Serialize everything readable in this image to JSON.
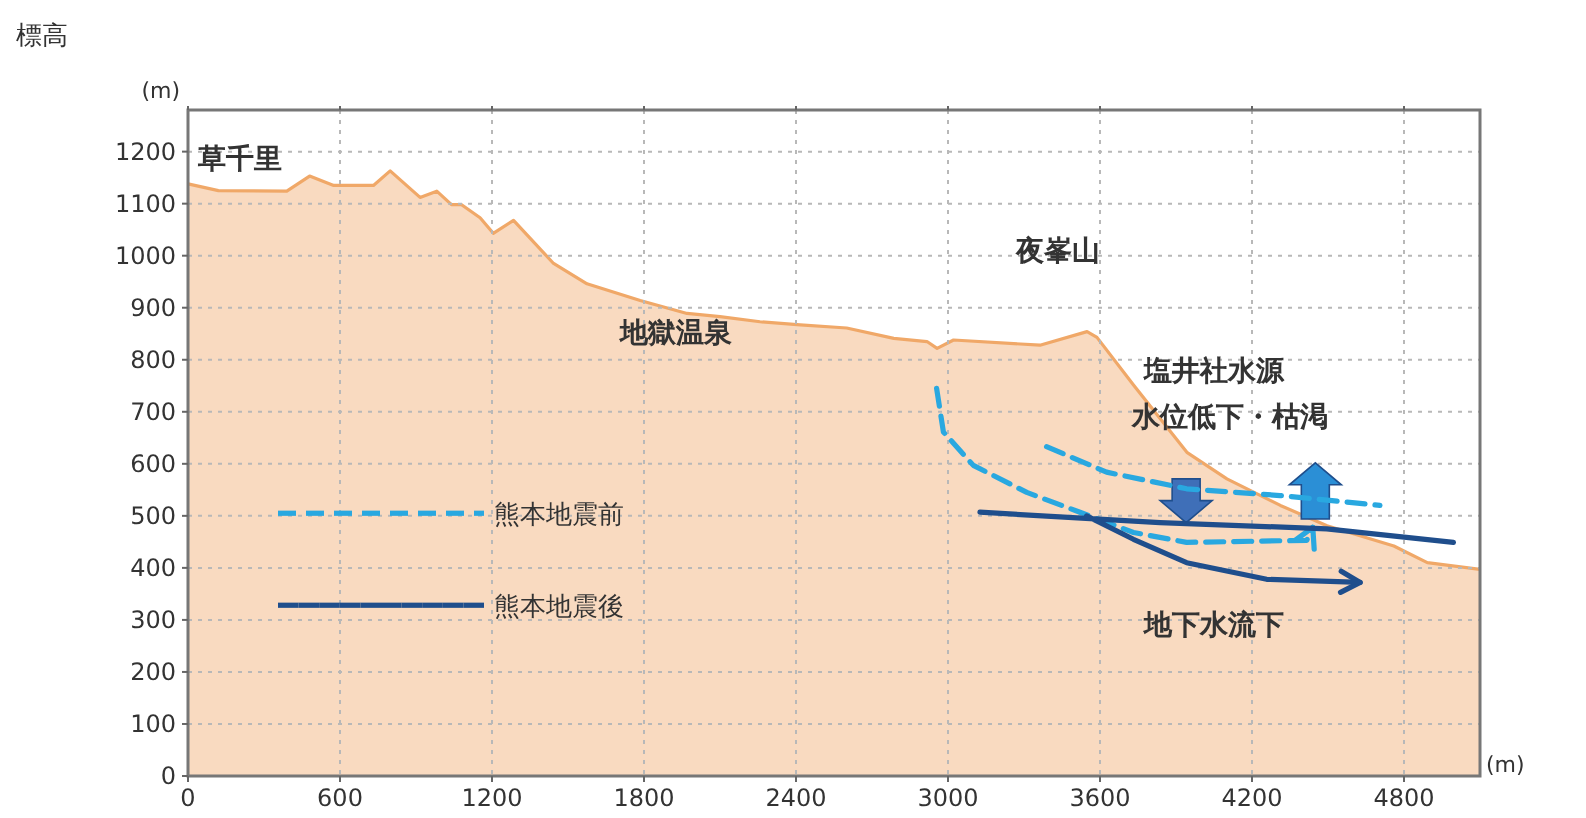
{
  "chart_data": {
    "type": "area",
    "title": "標高",
    "ylabel": "(m)",
    "xlabel": "(m)",
    "xlim": [
      0,
      5100
    ],
    "ylim": [
      0,
      1280
    ],
    "xticks": [
      0,
      600,
      1200,
      1800,
      2400,
      3000,
      3600,
      4200,
      4800
    ],
    "yticks": [
      0,
      100,
      200,
      300,
      400,
      500,
      600,
      700,
      800,
      900,
      1000,
      1100,
      1200
    ],
    "grid": true,
    "legend": "left",
    "series": [
      {
        "color": "#f0a868",
        "x": [
          0,
          120,
          390,
          480,
          575,
          732,
          798,
          916,
          982,
          1040,
          1080,
          1153,
          1205,
          1285,
          1443,
          1575,
          1785,
          1970,
          2100,
          2258,
          2417,
          2600,
          2786,
          2917,
          2957,
          3022,
          3363,
          3549,
          3588,
          3733,
          3943,
          4101,
          4312,
          4496,
          4760,
          4892,
          5100
        ],
        "values": [
          1138,
          1125,
          1124,
          1153,
          1135,
          1135,
          1163,
          1112,
          1124,
          1098,
          1098,
          1073,
          1043,
          1068,
          985,
          946,
          914,
          889,
          883,
          873,
          867,
          861,
          841,
          835,
          822,
          838,
          828,
          854,
          843,
          751,
          622,
          571,
          520,
          481,
          442,
          410,
          397
        ]
      },
      {
        "type": "line",
        "name": "熊本地震前",
        "color": "#29a8e0",
        "line_style": "dashed",
        "x": [
          2955,
          2982,
          3100,
          3311,
          3521,
          3732,
          3942,
          4416,
          4440,
          null,
          3389,
          3626,
          3942,
          4311,
          4705
        ],
        "values": [
          745,
          661,
          597,
          545,
          507,
          468,
          449,
          453,
          478,
          null,
          633,
          584,
          552,
          539,
          520
        ]
      },
      {
        "type": "line",
        "name": "熊本地震後",
        "color": "#1f4e8c",
        "line_style": "solid",
        "x": [
          3126,
          3837,
          4495,
          4995,
          null,
          3547,
          3732,
          3942,
          4258,
          4627
        ],
        "values": [
          507,
          487,
          475,
          449,
          null,
          500,
          455,
          410,
          378,
          372
        ]
      }
    ],
    "annotations": [
      "草千里",
      "地獄温泉",
      "夜峯山",
      "塩井社水源",
      "水位低下・枯渇",
      "地下水流下"
    ]
  }
}
